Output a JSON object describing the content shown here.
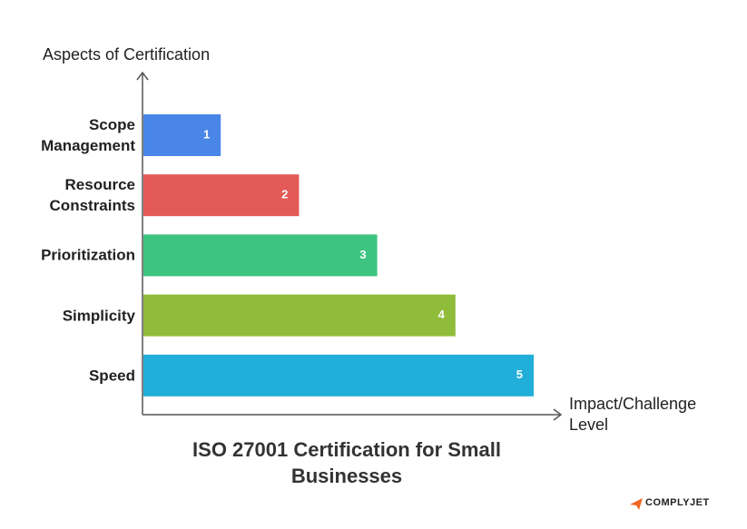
{
  "chart_data": {
    "type": "bar",
    "orientation": "horizontal",
    "title": "ISO 27001 Certification for Small Businesses",
    "y_label": "Aspects of Certification",
    "x_label": "Impact/Challenge Level",
    "categories": [
      "Scope Management",
      "Resource Constraints",
      "Prioritization",
      "Simplicity",
      "Speed"
    ],
    "values": [
      1,
      2,
      3,
      4,
      5
    ],
    "colors": [
      "#4a86e8",
      "#e45a58",
      "#3dc47f",
      "#8fbc3a",
      "#21aed8"
    ],
    "xlim": [
      0,
      5
    ]
  },
  "logo_text": "COMPLYJET"
}
